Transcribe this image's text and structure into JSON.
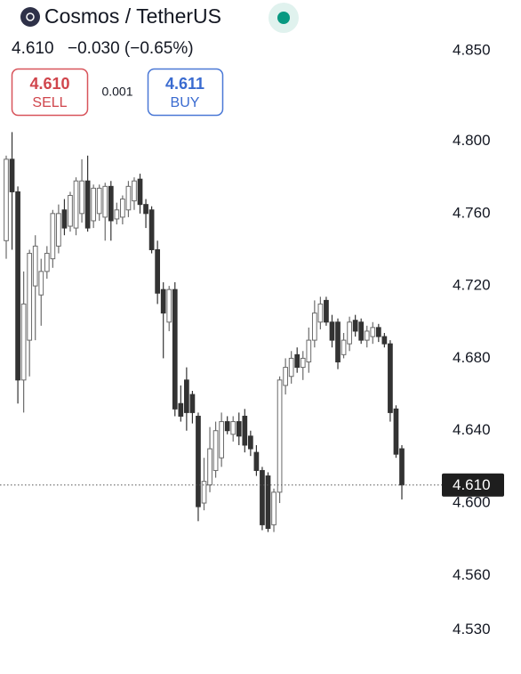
{
  "header": {
    "title": "Cosmos / TetherUS",
    "price": "4.610",
    "change": "−0.030 (−0.65%)",
    "sell": {
      "price": "4.610",
      "label": "SELL"
    },
    "spread": "0.001",
    "buy": {
      "price": "4.611",
      "label": "BUY"
    }
  },
  "chart_data": {
    "type": "candlestick",
    "ylim": [
      4.508,
      4.878
    ],
    "yticks": [
      {
        "value": 4.53,
        "label": "4.530"
      },
      {
        "value": 4.56,
        "label": "4.560"
      },
      {
        "value": 4.6,
        "label": "4.600"
      },
      {
        "value": 4.64,
        "label": "4.640"
      },
      {
        "value": 4.68,
        "label": "4.680"
      },
      {
        "value": 4.72,
        "label": "4.720"
      },
      {
        "value": 4.76,
        "label": "4.760"
      },
      {
        "value": 4.8,
        "label": "4.800"
      },
      {
        "value": 4.85,
        "label": "4.850"
      }
    ],
    "last_price": {
      "value": 4.61,
      "label": "4.610"
    },
    "up_color": "#ffffff",
    "down_color": "#333333",
    "edge_color": "#6b6b6b",
    "open": [
      4.745,
      4.79,
      4.772,
      4.668,
      4.69,
      4.72,
      4.715,
      4.728,
      4.735,
      4.742,
      4.762,
      4.753,
      4.752,
      4.76,
      4.778,
      4.756,
      4.76,
      4.758,
      4.775,
      4.757,
      4.758,
      4.762,
      4.767,
      4.779,
      4.765,
      4.762,
      4.74,
      4.718,
      4.7,
      4.718,
      4.655,
      4.668,
      4.66,
      4.648,
      4.6,
      4.61,
      4.618,
      4.625,
      4.645,
      4.638,
      4.645,
      4.648,
      4.637,
      4.628,
      4.618,
      4.615,
      4.588,
      4.606,
      4.665,
      4.67,
      4.682,
      4.675,
      4.678,
      4.69,
      4.7,
      4.712,
      4.7,
      4.7,
      4.682,
      4.688,
      4.701,
      4.7,
      4.69,
      4.692,
      4.697,
      4.692,
      4.688,
      4.652,
      4.63
    ],
    "high": [
      4.792,
      4.805,
      4.775,
      4.728,
      4.74,
      4.748,
      4.735,
      4.742,
      4.762,
      4.765,
      4.768,
      4.772,
      4.78,
      4.79,
      4.792,
      4.776,
      4.776,
      4.777,
      4.778,
      4.766,
      4.77,
      4.778,
      4.78,
      4.782,
      4.768,
      4.764,
      4.745,
      4.722,
      4.72,
      4.722,
      4.665,
      4.675,
      4.662,
      4.65,
      4.625,
      4.642,
      4.645,
      4.65,
      4.648,
      4.648,
      4.65,
      4.652,
      4.64,
      4.632,
      4.62,
      4.617,
      4.608,
      4.67,
      4.68,
      4.684,
      4.686,
      4.684,
      4.697,
      4.712,
      4.714,
      4.714,
      4.704,
      4.702,
      4.694,
      4.703,
      4.704,
      4.702,
      4.698,
      4.7,
      4.699,
      4.694,
      4.69,
      4.654,
      4.632
    ],
    "low": [
      4.735,
      4.74,
      4.655,
      4.65,
      4.67,
      4.69,
      4.698,
      4.724,
      4.73,
      4.738,
      4.748,
      4.75,
      4.748,
      4.755,
      4.75,
      4.752,
      4.756,
      4.745,
      4.745,
      4.754,
      4.754,
      4.758,
      4.762,
      4.76,
      4.752,
      4.738,
      4.71,
      4.68,
      4.695,
      4.648,
      4.645,
      4.64,
      4.644,
      4.59,
      4.596,
      4.606,
      4.614,
      4.62,
      4.638,
      4.634,
      4.632,
      4.628,
      4.626,
      4.615,
      4.585,
      4.584,
      4.584,
      4.6,
      4.66,
      4.666,
      4.672,
      4.668,
      4.672,
      4.686,
      4.696,
      4.698,
      4.686,
      4.674,
      4.68,
      4.684,
      4.692,
      4.688,
      4.686,
      4.688,
      4.689,
      4.686,
      4.645,
      4.625,
      4.602
    ],
    "close": [
      4.79,
      4.772,
      4.668,
      4.71,
      4.738,
      4.742,
      4.728,
      4.738,
      4.76,
      4.76,
      4.752,
      4.77,
      4.778,
      4.778,
      4.752,
      4.774,
      4.774,
      4.775,
      4.756,
      4.762,
      4.768,
      4.775,
      4.778,
      4.765,
      4.76,
      4.74,
      4.716,
      4.705,
      4.718,
      4.652,
      4.648,
      4.65,
      4.65,
      4.598,
      4.612,
      4.63,
      4.64,
      4.645,
      4.64,
      4.645,
      4.637,
      4.632,
      4.63,
      4.618,
      4.588,
      4.586,
      4.606,
      4.668,
      4.675,
      4.68,
      4.675,
      4.68,
      4.69,
      4.705,
      4.71,
      4.7,
      4.69,
      4.678,
      4.69,
      4.7,
      4.695,
      4.69,
      4.695,
      4.697,
      4.692,
      4.688,
      4.65,
      4.627,
      4.61
    ]
  }
}
